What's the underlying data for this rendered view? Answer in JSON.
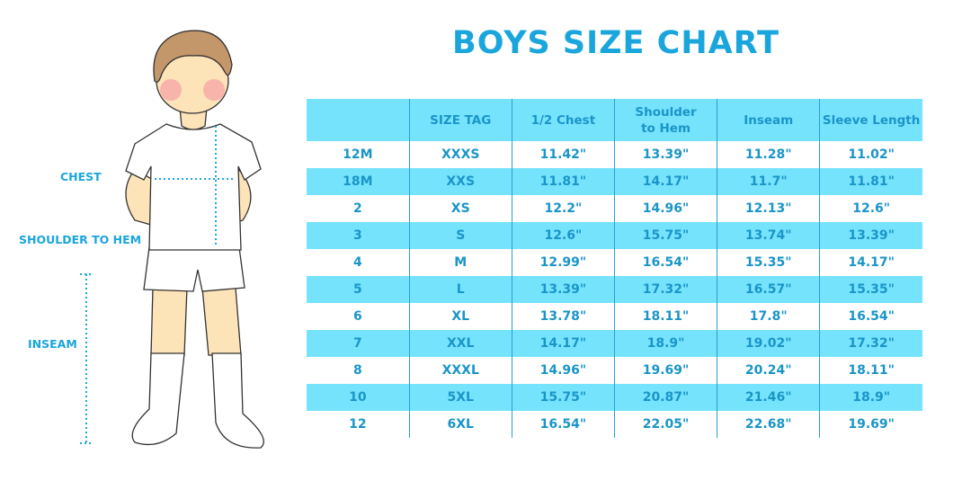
{
  "title": "BOYS SIZE CHART",
  "diagram_labels": {
    "chest": "CHEST",
    "shoulder_to_hem": "SHOULDER TO HEM",
    "inseam": "INSEAM"
  },
  "colors": {
    "accent": "#1aa6dc",
    "row_highlight": "#76e3fd",
    "text": "#1a95c8"
  },
  "table": {
    "headers": [
      "",
      "SIZE TAG",
      "1/2 Chest",
      "Shoulder to Hem",
      "Inseam",
      "Sleeve Length"
    ],
    "rows": [
      [
        "12M",
        "XXXS",
        "11.42\"",
        "13.39\"",
        "11.28\"",
        "11.02\""
      ],
      [
        "18M",
        "XXS",
        "11.81\"",
        "14.17\"",
        "11.7\"",
        "11.81\""
      ],
      [
        "2",
        "XS",
        "12.2\"",
        "14.96\"",
        "12.13\"",
        "12.6\""
      ],
      [
        "3",
        "S",
        "12.6\"",
        "15.75\"",
        "13.74\"",
        "13.39\""
      ],
      [
        "4",
        "M",
        "12.99\"",
        "16.54\"",
        "15.35\"",
        "14.17\""
      ],
      [
        "5",
        "L",
        "13.39\"",
        "17.32\"",
        "16.57\"",
        "15.35\""
      ],
      [
        "6",
        "XL",
        "13.78\"",
        "18.11\"",
        "17.8\"",
        "16.54\""
      ],
      [
        "7",
        "XXL",
        "14.17\"",
        "18.9\"",
        "19.02\"",
        "17.32\""
      ],
      [
        "8",
        "XXXL",
        "14.96\"",
        "19.69\"",
        "20.24\"",
        "18.11\""
      ],
      [
        "10",
        "5XL",
        "15.75\"",
        "20.87\"",
        "21.46\"",
        "18.9\""
      ],
      [
        "12",
        "6XL",
        "16.54\"",
        "22.05\"",
        "22.68\"",
        "19.69\""
      ]
    ]
  }
}
